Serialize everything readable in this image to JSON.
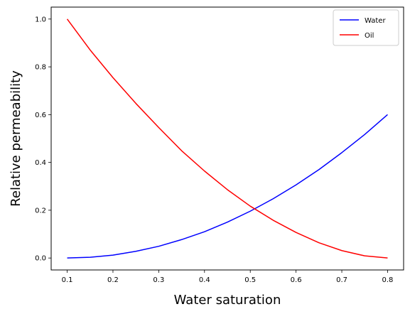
{
  "chart_data": {
    "type": "line",
    "title": "",
    "xlabel": "Water saturation",
    "ylabel": "Relative permeability",
    "xlim": [
      0.065,
      0.835
    ],
    "ylim": [
      -0.05,
      1.05
    ],
    "xticks": [
      0.1,
      0.2,
      0.3,
      0.4,
      0.5,
      0.6,
      0.7,
      0.8
    ],
    "xtick_labels": [
      "0.1",
      "0.2",
      "0.3",
      "0.4",
      "0.5",
      "0.6",
      "0.7",
      "0.8"
    ],
    "yticks": [
      0.0,
      0.2,
      0.4,
      0.6,
      0.8,
      1.0
    ],
    "ytick_labels": [
      "0.0",
      "0.2",
      "0.4",
      "0.6",
      "0.8",
      "1.0"
    ],
    "grid": false,
    "legend_position": "top-right",
    "x": [
      0.1,
      0.15,
      0.2,
      0.25,
      0.3,
      0.35,
      0.4,
      0.45,
      0.5,
      0.55,
      0.6,
      0.65,
      0.7,
      0.75,
      0.8
    ],
    "series": [
      {
        "name": "Water",
        "color": "#0000ff",
        "values": [
          0.0,
          0.003,
          0.012,
          0.028,
          0.049,
          0.077,
          0.11,
          0.15,
          0.196,
          0.248,
          0.306,
          0.37,
          0.441,
          0.517,
          0.6
        ]
      },
      {
        "name": "Oil",
        "color": "#ff0000",
        "values": [
          1.0,
          0.871,
          0.755,
          0.647,
          0.546,
          0.449,
          0.364,
          0.286,
          0.217,
          0.158,
          0.107,
          0.064,
          0.031,
          0.009,
          0.0
        ]
      }
    ]
  }
}
